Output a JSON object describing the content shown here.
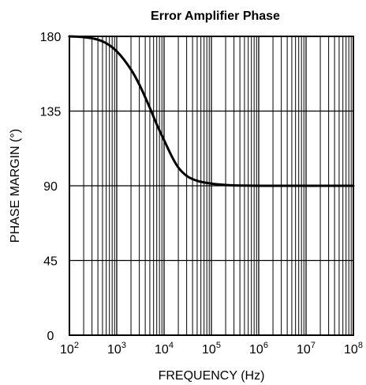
{
  "chart_data": {
    "type": "line",
    "title": "Error Amplifier Phase",
    "xlabel": "FREQUENCY (Hz)",
    "ylabel": "PHASE MARGIN (°)",
    "x_scale": "log",
    "xlim": [
      100,
      100000000
    ],
    "ylim": [
      0,
      180
    ],
    "x_ticks": [
      {
        "base": "10",
        "exp": "2",
        "value": 100
      },
      {
        "base": "10",
        "exp": "3",
        "value": 1000
      },
      {
        "base": "10",
        "exp": "4",
        "value": 10000
      },
      {
        "base": "10",
        "exp": "5",
        "value": 100000
      },
      {
        "base": "10",
        "exp": "6",
        "value": 1000000
      },
      {
        "base": "10",
        "exp": "7",
        "value": 10000000
      },
      {
        "base": "10",
        "exp": "8",
        "value": 100000000
      }
    ],
    "y_ticks": [
      "0",
      "45",
      "90",
      "135",
      "180"
    ],
    "grid": true,
    "series": [
      {
        "color": "#000000",
        "x": [
          100,
          200,
          500,
          1000,
          2000,
          3000,
          5000,
          7000,
          10000,
          15000,
          20000,
          30000,
          50000,
          100000,
          200000,
          500000,
          1000000,
          10000000,
          100000000
        ],
        "y": [
          180,
          179.5,
          177,
          171,
          160,
          151,
          137,
          127,
          117.5,
          107,
          101,
          96,
          93,
          91.3,
          90.5,
          90.1,
          90,
          90,
          90
        ]
      }
    ]
  }
}
